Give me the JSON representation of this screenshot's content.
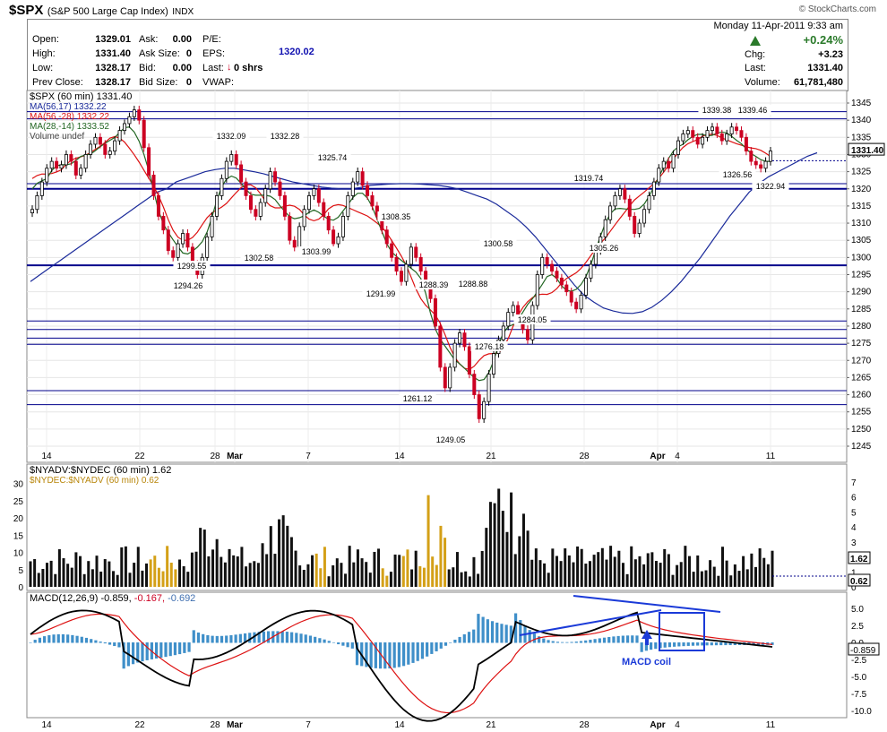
{
  "header": {
    "symbol": "$SPX",
    "name": "(S&P 500 Large Cap Index)",
    "exchange": "INDX",
    "watermark": "© StockCharts.com"
  },
  "quote": {
    "open_label": "Open:",
    "open": "1329.01",
    "high_label": "High:",
    "high": "1331.40",
    "low_label": "Low:",
    "low": "1328.17",
    "prevclose_label": "Prev Close:",
    "prevclose": "1328.17",
    "ask_label": "Ask:",
    "ask": "0.00",
    "asksize_label": "Ask Size:",
    "asksize": "0",
    "bid_label": "Bid:",
    "bid": "0.00",
    "bidsize_label": "Bid Size:",
    "bidsize": "0",
    "pe_label": "P/E:",
    "eps_label": "EPS:",
    "eps_value": "1320.02",
    "last_label": "Last:",
    "last_shrs": "0 shrs",
    "vwap_label": "VWAP:",
    "date": "Monday   11-Apr-2011   9:33 am",
    "pct": "+0.24%",
    "chg_label": "Chg:",
    "chg": "+3.23",
    "last2_label": "Last:",
    "last2": "1331.40",
    "volume_label": "Volume:",
    "volume": "61,781,480"
  },
  "main_legend": {
    "title": "$SPX (60 min) 1331.40",
    "ma1": "MA(56,17) 1332.22",
    "ma2": "MA(56,-28) 1332.22",
    "ma3": "MA(28,-14) 1333.52",
    "vol": "Volume undef"
  },
  "breadth_legend": {
    "l1": "$NYADV:$NYDEC (60 min) 1.62",
    "l2": "$NYDEC:$NYADV (60 min) 0.62"
  },
  "macd_legend": {
    "label": "MACD(12,26,9)",
    "v1": "-0.859,",
    "v2": "-0.167,",
    "v3": "-0.692"
  },
  "annotation": {
    "macd_coil": "MACD coil"
  },
  "colors": {
    "up": "#000000",
    "down": "#cc0022",
    "ma_blue": "#1a2a9a",
    "ma_red": "#dd1111",
    "ma_green": "#226622",
    "hline": "#00008b",
    "breadth_black": "#111111",
    "breadth_gold": "#d4a017",
    "histogram": "#3f8fc9",
    "annot": "#1a3ad8"
  },
  "chart_data": {
    "type": "candlestick",
    "price_axis": {
      "min": 1245,
      "max": 1345,
      "ticks": [
        "1345",
        "1340",
        "1335",
        "1330",
        "1325",
        "1320",
        "1315",
        "1310",
        "1305",
        "1300",
        "1295",
        "1290",
        "1285",
        "1280",
        "1275",
        "1270",
        "1265",
        "1260",
        "1255",
        "1250",
        "1245"
      ]
    },
    "date_ticks": [
      "14",
      "22",
      "28",
      "Mar",
      "7",
      "14",
      "21",
      "28",
      "Apr",
      "4",
      "11"
    ],
    "last_price_tag": "1331.40",
    "price_labels": [
      "1332.09",
      "1332.28",
      "1325.74",
      "1299.55",
      "1294.26",
      "1302.58",
      "1303.99",
      "1308.35",
      "1291.99",
      "1288.39",
      "1288.88",
      "1300.58",
      "1276.18",
      "1261.12",
      "1249.05",
      "1284.05",
      "1319.74",
      "1305.26",
      "1339.38",
      "1339.46",
      "1326.56",
      "1322.94"
    ],
    "horizontal_lines": [
      1342.5,
      1340.4,
      1321.5,
      1320.0,
      1297.7,
      1281.5,
      1279.0,
      1276.5,
      1274.7,
      1261.2,
      1257.1
    ],
    "candles": [
      1314,
      1318,
      1322,
      1326,
      1328,
      1326,
      1327,
      1330,
      1328,
      1324,
      1326,
      1330,
      1333,
      1335,
      1333,
      1330,
      1331,
      1334,
      1337,
      1339,
      1341,
      1343,
      1340,
      1332,
      1324,
      1318,
      1312,
      1308,
      1302,
      1300,
      1304,
      1307,
      1303,
      1298,
      1295,
      1300,
      1306,
      1312,
      1318,
      1323,
      1328,
      1330,
      1327,
      1322,
      1318,
      1314,
      1312,
      1316,
      1320,
      1325,
      1322,
      1318,
      1312,
      1305,
      1303,
      1309,
      1314,
      1318,
      1320,
      1316,
      1312,
      1308,
      1304,
      1306,
      1312,
      1318,
      1322,
      1325,
      1321,
      1318,
      1315,
      1312,
      1308,
      1304,
      1300,
      1296,
      1293,
      1298,
      1303,
      1300,
      1296,
      1292,
      1288,
      1280,
      1268,
      1262,
      1268,
      1275,
      1278,
      1274,
      1266,
      1260,
      1253,
      1258,
      1266,
      1272,
      1276,
      1280,
      1284,
      1286,
      1282,
      1279,
      1276,
      1286,
      1295,
      1300,
      1298,
      1296,
      1294,
      1292,
      1290,
      1287,
      1285,
      1289,
      1294,
      1298,
      1302,
      1306,
      1311,
      1315,
      1318,
      1320,
      1317,
      1312,
      1307,
      1310,
      1314,
      1318,
      1322,
      1326,
      1328,
      1326,
      1330,
      1334,
      1336,
      1337,
      1335,
      1333,
      1335,
      1337,
      1338,
      1336,
      1334,
      1336,
      1338,
      1337,
      1335,
      1331,
      1328,
      1327,
      1326,
      1328,
      1331
    ],
    "ma_blue": [
      1293,
      1295,
      1297,
      1299,
      1301,
      1303,
      1305,
      1307,
      1309,
      1311,
      1313,
      1315,
      1317,
      1319,
      1320,
      1322,
      1323,
      1324,
      1325,
      1325.6,
      1326,
      1326,
      1325.5,
      1325,
      1324.4,
      1323.6,
      1322.8,
      1322,
      1321.5,
      1321,
      1320.5,
      1320.2,
      1320,
      1320,
      1320.4,
      1321,
      1321.2,
      1321.4,
      1321.5,
      1321.5,
      1321.4,
      1321.2,
      1321,
      1320.6,
      1320,
      1319,
      1318,
      1317,
      1315.5,
      1313.5,
      1311.5,
      1309,
      1306,
      1302.5,
      1299,
      1295.5,
      1292,
      1289,
      1287,
      1285.3,
      1284.4,
      1283.8,
      1283.7,
      1284.2,
      1285.5,
      1287.5,
      1290,
      1293,
      1296.5,
      1300,
      1304,
      1308,
      1312,
      1315.5,
      1319,
      1321.5,
      1323.5,
      1325,
      1326.5,
      1328,
      1329.5,
      1330.5
    ],
    "breadth": {
      "y_ticks_left": [
        "30",
        "25",
        "20",
        "15",
        "10",
        "5",
        "0"
      ],
      "y_ticks_right": [
        "7",
        "6",
        "5",
        "4",
        "3",
        "2",
        "1",
        "0"
      ],
      "right_tags": [
        "1.62",
        "0.62"
      ]
    },
    "macd": {
      "y_ticks": [
        "5.0",
        "2.5",
        "0.0",
        "-2.5",
        "-5.0",
        "-7.5",
        "-10.0"
      ],
      "right_tags": [
        "-0.859"
      ]
    }
  }
}
